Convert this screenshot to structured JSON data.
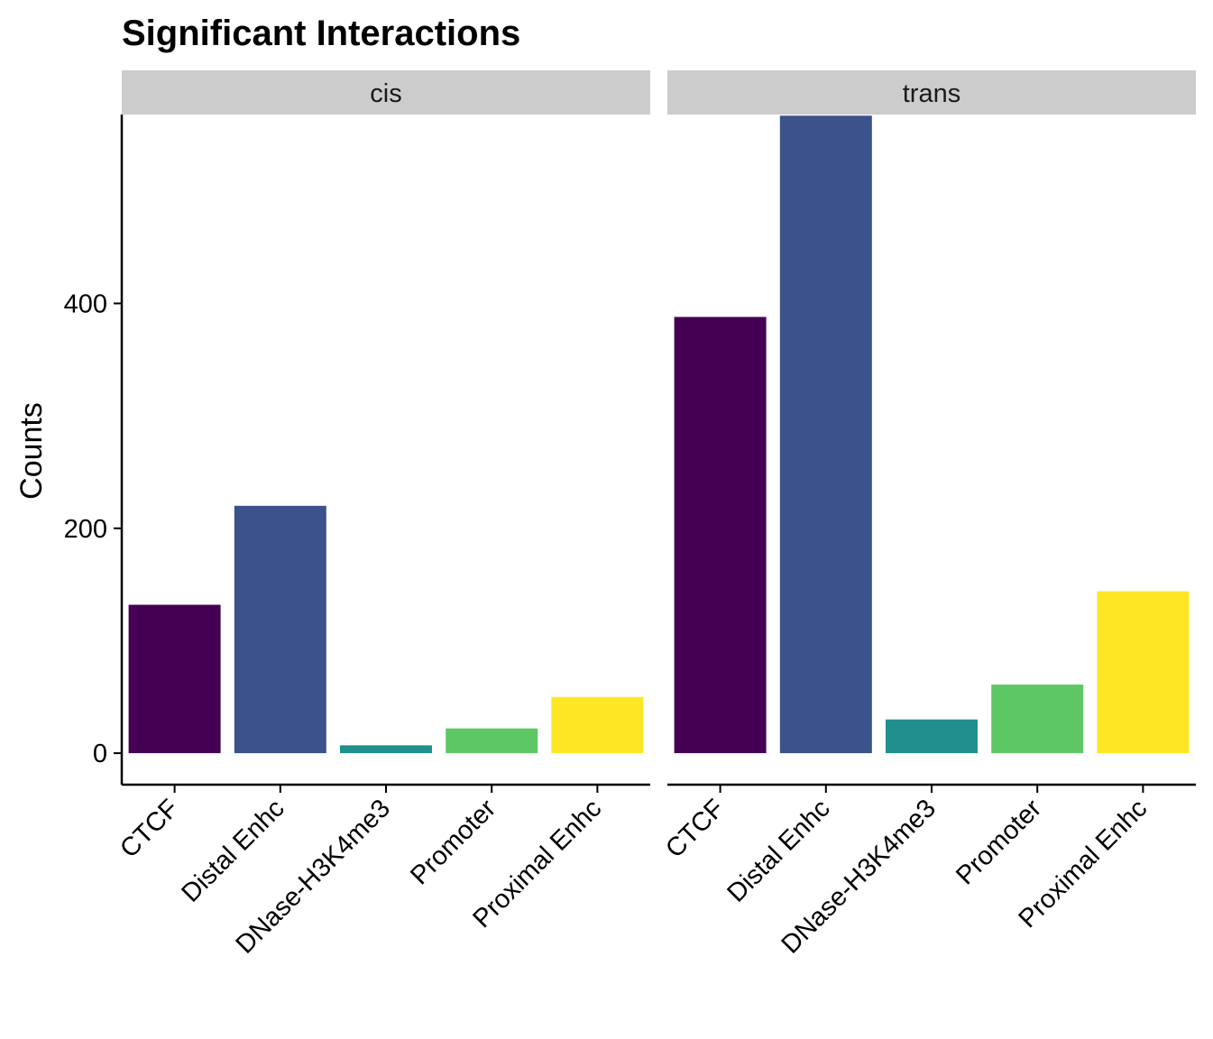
{
  "chart_data": {
    "type": "bar",
    "title": "Significant Interactions",
    "ylabel": "Counts",
    "xlabel": "",
    "ylim": [
      -28,
      568
    ],
    "yticks": [
      0,
      200,
      400
    ],
    "categories": [
      "CTCF",
      "Distal Enhc",
      "DNase-H3K4me3",
      "Promoter",
      "Proximal Enhc"
    ],
    "colors": [
      "#440154",
      "#3B528B",
      "#21908C",
      "#5DC863",
      "#FDE725"
    ],
    "facets": [
      {
        "name": "cis",
        "values": [
          132,
          220,
          7,
          22,
          50
        ]
      },
      {
        "name": "trans",
        "values": [
          388,
          567,
          30,
          61,
          144
        ]
      }
    ],
    "grid": false,
    "legend": "none"
  }
}
